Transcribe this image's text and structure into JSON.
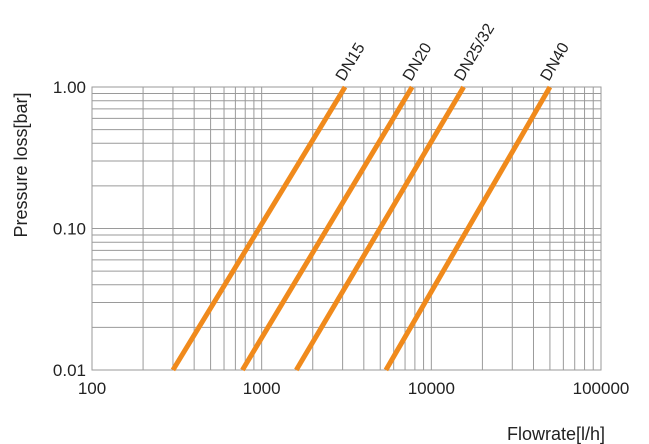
{
  "chart_data": {
    "type": "line",
    "xlabel": "Flowrate[l/h]",
    "ylabel": "Pressure loss[bar]",
    "x_scale": "log",
    "y_scale": "log",
    "xlim": [
      100,
      100000
    ],
    "ylim": [
      0.01,
      1.0
    ],
    "x_ticks": [
      "100",
      "1000",
      "10000",
      "100000"
    ],
    "y_ticks": [
      "0.01",
      "0.10",
      "1.00"
    ],
    "grid": true,
    "line_color": "#f08a1c",
    "series": [
      {
        "name": "DN15",
        "x": [
          300,
          3100
        ],
        "y": [
          0.01,
          1.0
        ]
      },
      {
        "name": "DN20",
        "x": [
          770,
          7700
        ],
        "y": [
          0.01,
          1.0
        ]
      },
      {
        "name": "DN25/32",
        "x": [
          1600,
          15500
        ],
        "y": [
          0.01,
          1.0
        ]
      },
      {
        "name": "DN40",
        "x": [
          5400,
          50000
        ],
        "y": [
          0.01,
          1.0
        ]
      }
    ]
  }
}
